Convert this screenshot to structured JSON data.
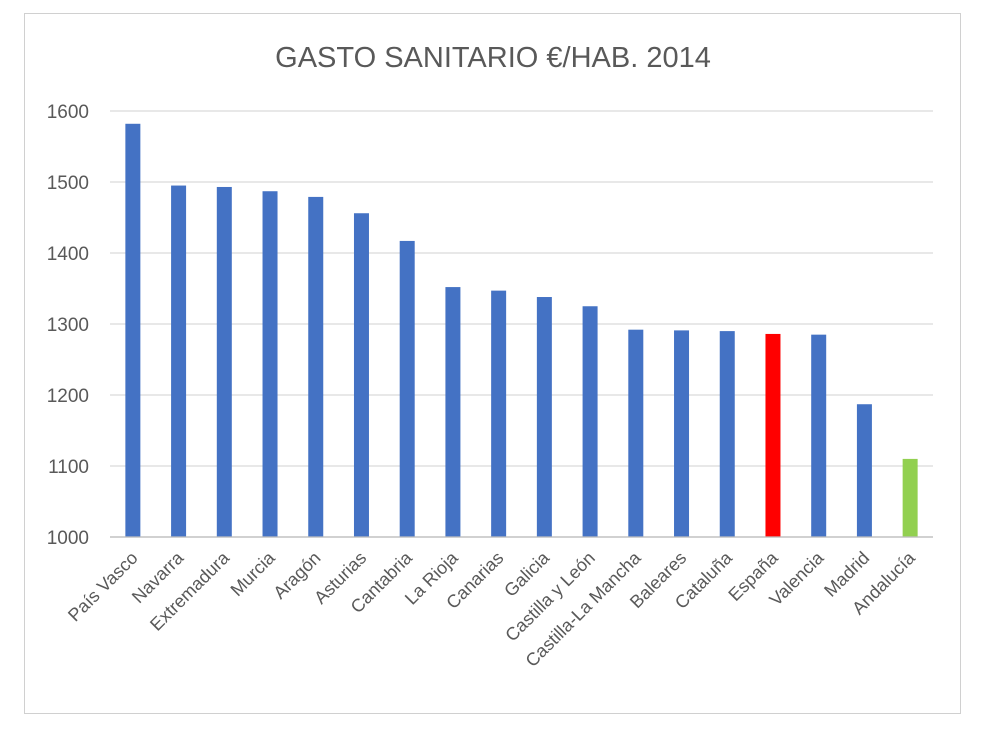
{
  "chart_data": {
    "type": "bar",
    "title": "GASTO SANITARIO €/HAB. 2014",
    "xlabel": "",
    "ylabel": "",
    "ylim": [
      1000,
      1600
    ],
    "yticks": [
      1000,
      1100,
      1200,
      1300,
      1400,
      1500,
      1600
    ],
    "grid": true,
    "legend": "none",
    "categories": [
      "País Vasco",
      "Navarra",
      "Extremadura",
      "Murcia",
      "Aragón",
      "Asturias",
      "Cantabria",
      "La Rioja",
      "Canarias",
      "Galicia",
      "Castilla y León",
      "Castilla-La Mancha",
      "Baleares",
      "Cataluña",
      "España",
      "Valencia",
      "Madrid",
      "Andalucía"
    ],
    "values": [
      1582,
      1495,
      1493,
      1487,
      1479,
      1456,
      1417,
      1352,
      1347,
      1338,
      1325,
      1292,
      1291,
      1290,
      1286,
      1285,
      1187,
      1110
    ],
    "colors": {
      "default": "#4472C4",
      "España": "#FF0000",
      "Andalucía": "#92D050"
    }
  }
}
